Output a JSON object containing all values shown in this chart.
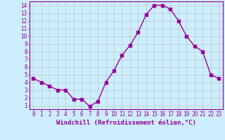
{
  "xlabel": "Windchill (Refroidissement éolien,°C)",
  "x": [
    0,
    1,
    2,
    3,
    4,
    5,
    6,
    7,
    8,
    9,
    10,
    11,
    12,
    13,
    14,
    15,
    16,
    17,
    18,
    19,
    20,
    21,
    22,
    23
  ],
  "y": [
    4.5,
    4.0,
    3.5,
    3.0,
    3.0,
    1.8,
    1.8,
    0.9,
    1.5,
    4.0,
    5.5,
    7.5,
    8.8,
    10.5,
    12.8,
    14.0,
    14.0,
    13.5,
    12.0,
    10.0,
    8.7,
    8.0,
    5.0,
    4.5
  ],
  "line_color": "#990099",
  "marker": "s",
  "marker_size": 2.5,
  "bg_color": "#cceeff",
  "grid_color": "#bbbbbb",
  "xlim": [
    -0.5,
    23.5
  ],
  "ylim": [
    0.5,
    14.5
  ],
  "yticks": [
    1,
    2,
    3,
    4,
    5,
    6,
    7,
    8,
    9,
    10,
    11,
    12,
    13,
    14
  ],
  "xticks": [
    0,
    1,
    2,
    3,
    4,
    5,
    6,
    7,
    8,
    9,
    10,
    11,
    12,
    13,
    14,
    15,
    16,
    17,
    18,
    19,
    20,
    21,
    22,
    23
  ],
  "tick_color": "#990099",
  "label_color": "#990099",
  "axis_line_color": "#990099",
  "xlabel_fontsize": 6.5,
  "tick_fontsize": 5.5,
  "line_width": 1.0
}
